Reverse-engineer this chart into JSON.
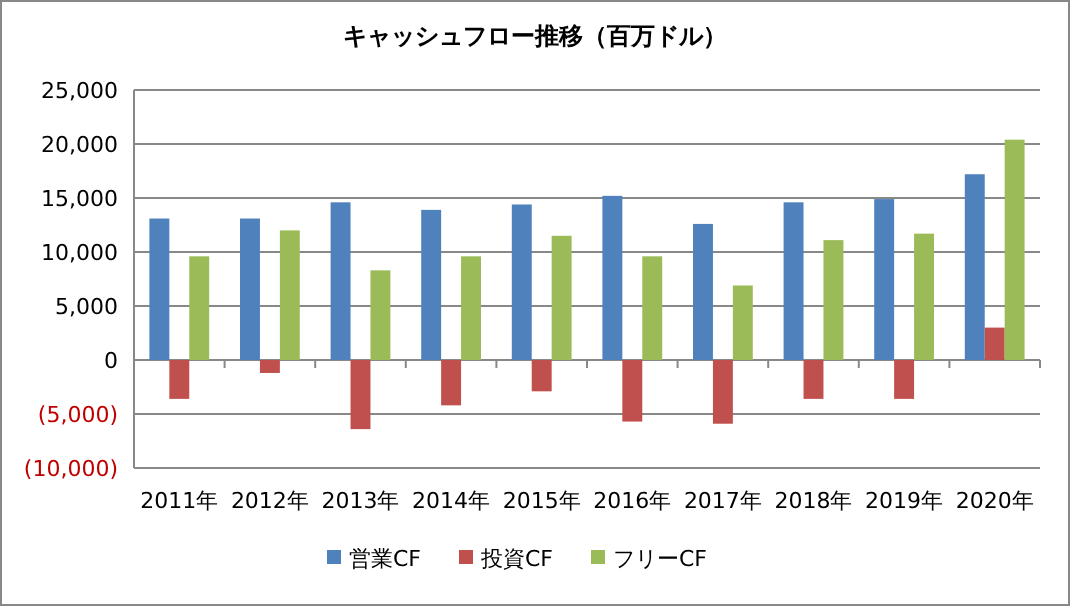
{
  "chart_data": {
    "type": "bar",
    "title": "キャッシュフロー推移（百万ドル）",
    "categories": [
      "2011年",
      "2012年",
      "2013年",
      "2014年",
      "2015年",
      "2016年",
      "2017年",
      "2018年",
      "2019年",
      "2020年"
    ],
    "series": [
      {
        "name": "営業CF",
        "color": "#4f81bd",
        "values": [
          13100,
          13100,
          14600,
          13900,
          14400,
          15200,
          12600,
          14600,
          14900,
          17200
        ]
      },
      {
        "name": "投資CF",
        "color": "#c0504d",
        "values": [
          -3600,
          -1200,
          -6400,
          -4200,
          -2900,
          -5700,
          -5900,
          -3600,
          -3600,
          3000
        ]
      },
      {
        "name": "フリーCF",
        "color": "#9bbb59",
        "values": [
          9600,
          12000,
          8300,
          9600,
          11500,
          9600,
          6900,
          11100,
          11700,
          20400
        ]
      }
    ],
    "ylim": [
      -10000,
      25000
    ],
    "yticks": [
      {
        "value": -10000,
        "label": "(10,000)"
      },
      {
        "value": -5000,
        "label": "(5,000)"
      },
      {
        "value": 0,
        "label": "0"
      },
      {
        "value": 5000,
        "label": "5,000"
      },
      {
        "value": 10000,
        "label": "10,000"
      },
      {
        "value": 15000,
        "label": "15,000"
      },
      {
        "value": 20000,
        "label": "20,000"
      },
      {
        "value": 25000,
        "label": "25,000"
      }
    ],
    "grid": "y",
    "legend": "bottom"
  }
}
